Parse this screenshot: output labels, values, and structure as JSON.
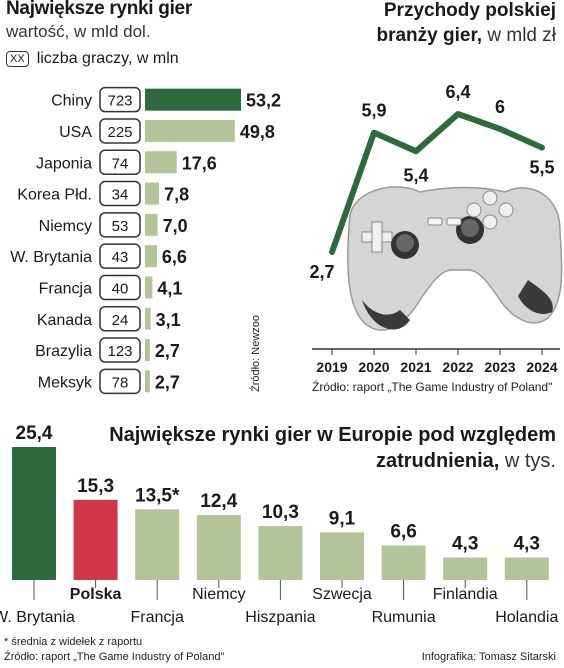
{
  "colors": {
    "dark": "#2d6a3e",
    "light": "#b3c598",
    "red": "#d0384a",
    "line": "#2d6a3e"
  },
  "chart_data": [
    {
      "type": "bar",
      "title": "Największe rynki gier",
      "subtitle": "wartość, w mld dol.",
      "legend_box": "XX",
      "legend_label": "liczba graczy, w mln",
      "categories": [
        "Chiny",
        "USA",
        "Japonia",
        "Korea Płd.",
        "Niemcy",
        "W. Brytania",
        "Francja",
        "Kanada",
        "Brazylia",
        "Meksyk"
      ],
      "players": [
        "723",
        "225",
        "74",
        "34",
        "53",
        "43",
        "40",
        "24",
        "123",
        "78"
      ],
      "values": [
        53.2,
        49.8,
        17.6,
        7.8,
        7.0,
        6.6,
        4.1,
        3.1,
        2.7,
        2.7
      ],
      "value_labels": [
        "53,2",
        "49,8",
        "17,6",
        "7,8",
        "7,0",
        "6,6",
        "4,1",
        "3,1",
        "2,7",
        "2,7"
      ],
      "source": "Źródło: Newzoo"
    },
    {
      "type": "line",
      "title": "Przychody polskiej",
      "title2": "branży gier,",
      "unit": "w mld zł",
      "x": [
        "2019",
        "2020",
        "2021",
        "2022",
        "2023",
        "2024"
      ],
      "values": [
        2.7,
        5.9,
        5.4,
        6.4,
        6.0,
        5.5
      ],
      "value_labels": [
        "2,7",
        "5,9",
        "5,4",
        "6,4",
        "6",
        "5,5"
      ],
      "source": "Źródło: raport „The Game Industry of Poland\""
    },
    {
      "type": "bar",
      "title": "Największe rynki gier w Europie pod względem",
      "title2": "zatrudnienia,",
      "unit": "w tys.",
      "categories": [
        "W. Brytania",
        "Polska",
        "Francja",
        "Niemcy",
        "Hiszpania",
        "Szwecja",
        "Rumunia",
        "Finlandia",
        "Holandia"
      ],
      "values": [
        25.4,
        15.3,
        13.5,
        12.4,
        10.3,
        9.1,
        6.6,
        4.3,
        4.3
      ],
      "value_labels": [
        "25,4",
        "15,3",
        "13,5*",
        "12,4",
        "10,3",
        "9,1",
        "6,6",
        "4,3",
        "4,3"
      ],
      "footnote": "* średnia z widełek z raportu",
      "source": "Źródło: raport „The Game Industry of Poland\"",
      "credit": "Infografika: Tomasz Sitarski"
    }
  ]
}
